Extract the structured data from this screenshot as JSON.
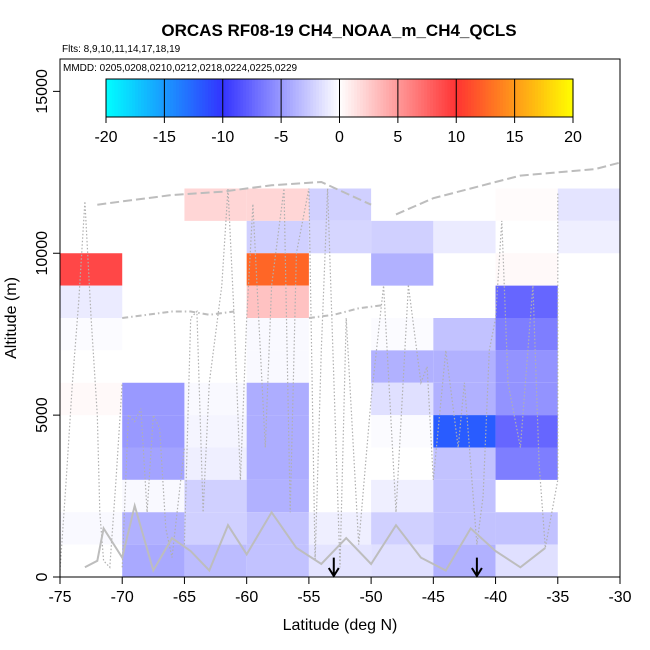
{
  "chart_data": {
    "type": "heatmap",
    "title": "ORCAS RF08-19 CH4_NOAA_m_CH4_QCLS",
    "subtitle_flights": "Flts: 8,9,10,11,14,17,18,19",
    "subtitle_dates": "MMDD: 0205,0208,0210,0212,0218,0224,0225,0229",
    "xlabel": "Latitude (deg N)",
    "ylabel": "Altitude (m)",
    "xlim": [
      -75,
      -30
    ],
    "ylim": [
      0,
      16000
    ],
    "x_ticks": [
      -75,
      -70,
      -65,
      -60,
      -55,
      -50,
      -45,
      -40,
      -35,
      -30
    ],
    "y_ticks": [
      0,
      5000,
      10000,
      15000
    ],
    "colorbar": {
      "range": [
        -20,
        20
      ],
      "ticks": [
        -20,
        -15,
        -10,
        -5,
        0,
        5,
        10,
        15,
        20
      ],
      "colors": [
        "#00ffff",
        "#3333ff",
        "#ffffff",
        "#ff3333",
        "#ffff00"
      ]
    },
    "grid": false,
    "markers": [
      {
        "type": "arrow-down",
        "lat": -53,
        "alt": 600
      },
      {
        "type": "arrow-down",
        "lat": -41.5,
        "alt": 600
      }
    ],
    "cells": [
      {
        "lat0": -75,
        "lat1": -70,
        "alt0": 9000,
        "alt1": 10000,
        "value": 9
      },
      {
        "lat0": -75,
        "lat1": -70,
        "alt0": 8000,
        "alt1": 9000,
        "value": -1
      },
      {
        "lat0": -75,
        "lat1": -70,
        "alt0": 7000,
        "alt1": 8000,
        "value": -0.2
      },
      {
        "lat0": -75,
        "lat1": -70,
        "alt0": 5000,
        "alt1": 6000,
        "value": 0.3
      },
      {
        "lat0": -75,
        "lat1": -70,
        "alt0": 1000,
        "alt1": 2000,
        "value": -0.3
      },
      {
        "lat0": -70,
        "lat1": -65,
        "alt0": 5000,
        "alt1": 6000,
        "value": -5
      },
      {
        "lat0": -70,
        "lat1": -65,
        "alt0": 4000,
        "alt1": 5000,
        "value": -5
      },
      {
        "lat0": -70,
        "lat1": -65,
        "alt0": 3000,
        "alt1": 4000,
        "value": -4.5
      },
      {
        "lat0": -70,
        "lat1": -65,
        "alt0": 2000,
        "alt1": 3000,
        "value": -0.3
      },
      {
        "lat0": -70,
        "lat1": -65,
        "alt0": 1000,
        "alt1": 2000,
        "value": -3.8
      },
      {
        "lat0": -70,
        "lat1": -65,
        "alt0": 0,
        "alt1": 1000,
        "value": -4.2
      },
      {
        "lat0": -65,
        "lat1": -60,
        "alt0": 11000,
        "alt1": 12000,
        "value": 2
      },
      {
        "lat0": -65,
        "lat1": -60,
        "alt0": 5000,
        "alt1": 6000,
        "value": -0.3
      },
      {
        "lat0": -65,
        "lat1": -60,
        "alt0": 4000,
        "alt1": 5000,
        "value": -0.5
      },
      {
        "lat0": -65,
        "lat1": -60,
        "alt0": 3000,
        "alt1": 4000,
        "value": -0.8
      },
      {
        "lat0": -65,
        "lat1": -60,
        "alt0": 2000,
        "alt1": 3000,
        "value": -2.3
      },
      {
        "lat0": -65,
        "lat1": -60,
        "alt0": 1000,
        "alt1": 2000,
        "value": -2.3
      },
      {
        "lat0": -65,
        "lat1": -60,
        "alt0": 0,
        "alt1": 1000,
        "value": -3.3
      },
      {
        "lat0": -60,
        "lat1": -55,
        "alt0": 11000,
        "alt1": 12000,
        "value": 2
      },
      {
        "lat0": -60,
        "lat1": -55,
        "alt0": 10000,
        "alt1": 11000,
        "value": -2.3
      },
      {
        "lat0": -60,
        "lat1": -55,
        "alt0": 9000,
        "alt1": 10000,
        "value": 12.5
      },
      {
        "lat0": -60,
        "lat1": -55,
        "alt0": 8000,
        "alt1": 9000,
        "value": 3
      },
      {
        "lat0": -60,
        "lat1": -55,
        "alt0": 7000,
        "alt1": 8000,
        "value": -0.3
      },
      {
        "lat0": -60,
        "lat1": -55,
        "alt0": 6000,
        "alt1": 7000,
        "value": -0.3
      },
      {
        "lat0": -60,
        "lat1": -55,
        "alt0": 5000,
        "alt1": 6000,
        "value": -4
      },
      {
        "lat0": -60,
        "lat1": -55,
        "alt0": 4000,
        "alt1": 5000,
        "value": -4
      },
      {
        "lat0": -60,
        "lat1": -55,
        "alt0": 3000,
        "alt1": 4000,
        "value": -4
      },
      {
        "lat0": -60,
        "lat1": -55,
        "alt0": 2000,
        "alt1": 3000,
        "value": -3.8
      },
      {
        "lat0": -60,
        "lat1": -55,
        "alt0": 1000,
        "alt1": 2000,
        "value": -3
      },
      {
        "lat0": -60,
        "lat1": -55,
        "alt0": 0,
        "alt1": 1000,
        "value": -3
      },
      {
        "lat0": -55,
        "lat1": -50,
        "alt0": 11000,
        "alt1": 12000,
        "value": -2.3
      },
      {
        "lat0": -55,
        "lat1": -50,
        "alt0": 10000,
        "alt1": 11000,
        "value": -2
      },
      {
        "lat0": -55,
        "lat1": -50,
        "alt0": 1000,
        "alt1": 2000,
        "value": -0.8
      },
      {
        "lat0": -55,
        "lat1": -50,
        "alt0": 0,
        "alt1": 1000,
        "value": -1.3
      },
      {
        "lat0": -50,
        "lat1": -45,
        "alt0": 10000,
        "alt1": 11000,
        "value": -2.3
      },
      {
        "lat0": -50,
        "lat1": -45,
        "alt0": 9000,
        "alt1": 10000,
        "value": -3.8
      },
      {
        "lat0": -50,
        "lat1": -45,
        "alt0": 7000,
        "alt1": 8000,
        "value": -0.2
      },
      {
        "lat0": -50,
        "lat1": -45,
        "alt0": 6000,
        "alt1": 7000,
        "value": -3.8
      },
      {
        "lat0": -50,
        "lat1": -45,
        "alt0": 5000,
        "alt1": 6000,
        "value": -1.5
      },
      {
        "lat0": -50,
        "lat1": -45,
        "alt0": 4000,
        "alt1": 5000,
        "value": -0.2
      },
      {
        "lat0": -50,
        "lat1": -45,
        "alt0": 2000,
        "alt1": 3000,
        "value": -0.8
      },
      {
        "lat0": -50,
        "lat1": -45,
        "alt0": 1000,
        "alt1": 2000,
        "value": -2.3
      },
      {
        "lat0": -50,
        "lat1": -45,
        "alt0": 0,
        "alt1": 1000,
        "value": -1.5
      },
      {
        "lat0": -45,
        "lat1": -40,
        "alt0": 10000,
        "alt1": 11000,
        "value": -1
      },
      {
        "lat0": -45,
        "lat1": -40,
        "alt0": 7000,
        "alt1": 8000,
        "value": -3
      },
      {
        "lat0": -45,
        "lat1": -40,
        "alt0": 6000,
        "alt1": 7000,
        "value": -3.8
      },
      {
        "lat0": -45,
        "lat1": -40,
        "alt0": 5000,
        "alt1": 6000,
        "value": -3.8
      },
      {
        "lat0": -45,
        "lat1": -40,
        "alt0": 4000,
        "alt1": 5000,
        "value": -12
      },
      {
        "lat0": -45,
        "lat1": -40,
        "alt0": 3000,
        "alt1": 4000,
        "value": -3
      },
      {
        "lat0": -45,
        "lat1": -40,
        "alt0": 2000,
        "alt1": 3000,
        "value": -3
      },
      {
        "lat0": -45,
        "lat1": -40,
        "alt0": 1000,
        "alt1": 2000,
        "value": -3
      },
      {
        "lat0": -45,
        "lat1": -40,
        "alt0": 0,
        "alt1": 1000,
        "value": -3.8
      },
      {
        "lat0": -40,
        "lat1": -35,
        "alt0": 11000,
        "alt1": 12000,
        "value": 0.2
      },
      {
        "lat0": -40,
        "lat1": -35,
        "alt0": 9000,
        "alt1": 10000,
        "value": 0.3
      },
      {
        "lat0": -40,
        "lat1": -35,
        "alt0": 8000,
        "alt1": 9000,
        "value": -7.5
      },
      {
        "lat0": -40,
        "lat1": -35,
        "alt0": 7000,
        "alt1": 8000,
        "value": -6.3
      },
      {
        "lat0": -40,
        "lat1": -35,
        "alt0": 6000,
        "alt1": 7000,
        "value": -5.3
      },
      {
        "lat0": -40,
        "lat1": -35,
        "alt0": 5000,
        "alt1": 6000,
        "value": -5.3
      },
      {
        "lat0": -40,
        "lat1": -35,
        "alt0": 4000,
        "alt1": 5000,
        "value": -7.5
      },
      {
        "lat0": -40,
        "lat1": -35,
        "alt0": 3000,
        "alt1": 4000,
        "value": -6.3
      },
      {
        "lat0": -40,
        "lat1": -35,
        "alt0": 1000,
        "alt1": 2000,
        "value": -3
      },
      {
        "lat0": -40,
        "lat1": -35,
        "alt0": 0,
        "alt1": 1000,
        "value": -1.5
      },
      {
        "lat0": -35,
        "lat1": -30,
        "alt0": 11000,
        "alt1": 12000,
        "value": -1.3
      },
      {
        "lat0": -35,
        "lat1": -30,
        "alt0": 10000,
        "alt1": 11000,
        "value": -0.8
      }
    ],
    "flight_tracks": [
      {
        "style": "dotted",
        "points": [
          [
            -75,
            200
          ],
          [
            -74.5,
            3000
          ],
          [
            -74,
            6000
          ],
          [
            -73.5,
            8500
          ],
          [
            -73,
            11600
          ],
          [
            -72.5,
            8000
          ],
          [
            -72,
            5000
          ],
          [
            -71.8,
            2000
          ],
          [
            -71.5,
            500
          ],
          [
            -71,
            300
          ],
          [
            -70.5,
            3000
          ],
          [
            -70,
            6000
          ]
        ]
      },
      {
        "style": "dotted",
        "points": [
          [
            -70,
            300
          ],
          [
            -69.5,
            5000
          ],
          [
            -69,
            4800
          ],
          [
            -68.5,
            5200
          ],
          [
            -68,
            2000
          ],
          [
            -67.5,
            5000
          ],
          [
            -67,
            4600
          ],
          [
            -66.5,
            1500
          ],
          [
            -66,
            600
          ],
          [
            -65,
            4000
          ]
        ]
      },
      {
        "style": "dotted",
        "points": [
          [
            -65,
            1000
          ],
          [
            -64.5,
            8000
          ],
          [
            -64,
            8200
          ],
          [
            -63.5,
            2000
          ],
          [
            -63,
            6000
          ],
          [
            -62,
            9000
          ],
          [
            -61.5,
            12000
          ],
          [
            -61,
            8000
          ],
          [
            -60.5,
            3000
          ],
          [
            -60,
            8000
          ],
          [
            -59.5,
            11500
          ]
        ]
      },
      {
        "style": "dotted",
        "points": [
          [
            -59.5,
            11500
          ],
          [
            -58.5,
            4000
          ],
          [
            -58,
            9000
          ],
          [
            -57,
            12000
          ],
          [
            -56.5,
            2000
          ],
          [
            -56,
            10000
          ],
          [
            -55,
            12000
          ],
          [
            -54.5,
            500
          ],
          [
            -54,
            7000
          ],
          [
            -53.5,
            12000
          ],
          [
            -52.5,
            300
          ],
          [
            -52,
            8000
          ],
          [
            -51,
            1000
          ],
          [
            -50,
            5500
          ],
          [
            -49,
            9000
          ],
          [
            -48,
            2000
          ],
          [
            -47,
            9000
          ]
        ]
      },
      {
        "style": "dotted",
        "points": [
          [
            -47,
            9000
          ],
          [
            -46,
            6000
          ],
          [
            -45.5,
            6500
          ],
          [
            -45,
            3000
          ],
          [
            -44,
            7000
          ],
          [
            -43,
            4000
          ],
          [
            -42.5,
            6000
          ],
          [
            -41.5,
            1000
          ],
          [
            -41,
            2500
          ],
          [
            -40.5,
            7000
          ],
          [
            -40,
            8000
          ],
          [
            -39.5,
            11000
          ],
          [
            -39,
            6000
          ],
          [
            -38,
            4000
          ],
          [
            -37,
            9000
          ],
          [
            -36.5,
            3500
          ],
          [
            -36,
            900
          ],
          [
            -35,
            3000
          ],
          [
            -35,
            11900
          ]
        ]
      },
      {
        "style": "solid",
        "points": [
          [
            -73,
            300
          ],
          [
            -72,
            500
          ],
          [
            -71.5,
            1500
          ],
          [
            -70,
            600
          ],
          [
            -69,
            2200
          ],
          [
            -67.5,
            200
          ],
          [
            -66,
            1200
          ],
          [
            -64.5,
            800
          ],
          [
            -63,
            200
          ],
          [
            -61.5,
            1600
          ],
          [
            -60,
            700
          ],
          [
            -58,
            2000
          ],
          [
            -56,
            900
          ],
          [
            -54,
            400
          ],
          [
            -52,
            1200
          ],
          [
            -50,
            400
          ],
          [
            -48,
            1600
          ],
          [
            -46,
            600
          ],
          [
            -44,
            200
          ],
          [
            -42,
            1500
          ],
          [
            -40,
            800
          ],
          [
            -38,
            300
          ],
          [
            -36,
            900
          ]
        ]
      },
      {
        "style": "dashed",
        "points": [
          [
            -72,
            11500
          ],
          [
            -70,
            11600
          ],
          [
            -66,
            11800
          ],
          [
            -62,
            11900
          ],
          [
            -58,
            12100
          ],
          [
            -54,
            12200
          ],
          [
            -50,
            11500
          ]
        ]
      },
      {
        "style": "dashed",
        "points": [
          [
            -48,
            11200
          ],
          [
            -45,
            11700
          ],
          [
            -42,
            12000
          ],
          [
            -40,
            12200
          ],
          [
            -38,
            12400
          ],
          [
            -35,
            12500
          ],
          [
            -32,
            12600
          ],
          [
            -30,
            12800
          ]
        ]
      },
      {
        "style": "dashdot",
        "points": [
          [
            -70,
            8000
          ],
          [
            -68,
            8100
          ],
          [
            -66,
            8200
          ],
          [
            -64.5,
            8200
          ],
          [
            -63,
            8100
          ],
          [
            -61,
            8200
          ]
        ]
      },
      {
        "style": "dashdot",
        "points": [
          [
            -55,
            8000
          ],
          [
            -53,
            8100
          ],
          [
            -51,
            8300
          ],
          [
            -49,
            8400
          ]
        ]
      }
    ]
  }
}
